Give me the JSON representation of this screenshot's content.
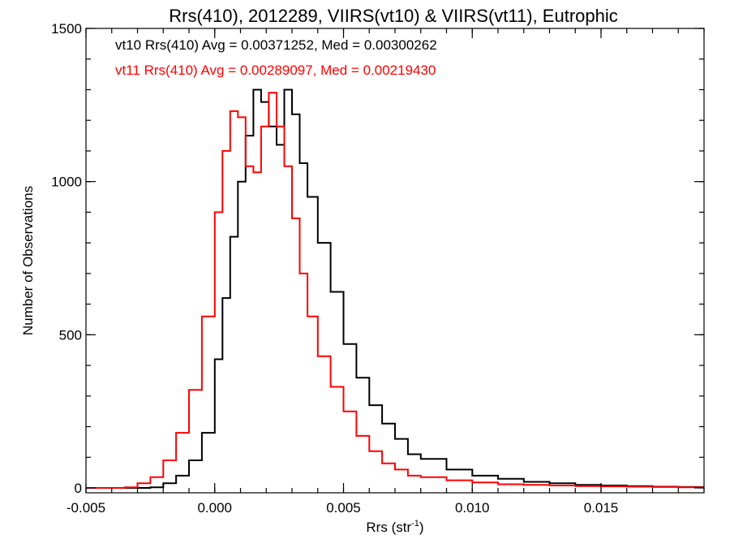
{
  "chart_data": {
    "type": "line",
    "title": "Rrs(410), 2012289, VIIRS(vt10) & VIIRS(vt11), Eutrophic",
    "xlabel": "Rrs (str",
    "xlabel_sup": "-1",
    "xlabel_end": ")",
    "ylabel": "Number of Observations",
    "xlim": [
      -0.005,
      0.019
    ],
    "ylim": [
      0,
      1500
    ],
    "x_ticks": [
      -0.005,
      0.0,
      0.005,
      0.01,
      0.015
    ],
    "x_tick_labels": [
      "-0.005",
      "0.000",
      "0.005",
      "0.010",
      "0.015"
    ],
    "y_ticks": [
      0,
      500,
      1000,
      1500
    ],
    "y_tick_labels": [
      "0",
      "500",
      "1000",
      "1500"
    ],
    "grid": false,
    "legend": [
      {
        "text": "vt10 Rrs(410) Avg = 0.00371252, Med = 0.00300262",
        "color": "#000000"
      },
      {
        "text": "vt11 Rrs(410) Avg = 0.00289097, Med = 0.00219430",
        "color": "#ff0000"
      }
    ],
    "series": [
      {
        "name": "vt10",
        "color": "#000000",
        "step": "post",
        "x": [
          -0.005,
          -0.004,
          -0.0035,
          -0.003,
          -0.0025,
          -0.002,
          -0.0015,
          -0.001,
          -0.0005,
          0.0,
          0.0003,
          0.0006,
          0.0009,
          0.0012,
          0.0015,
          0.0018,
          0.0021,
          0.0024,
          0.0027,
          0.003,
          0.0033,
          0.0036,
          0.004,
          0.0045,
          0.005,
          0.0055,
          0.006,
          0.0065,
          0.007,
          0.0075,
          0.008,
          0.009,
          0.01,
          0.011,
          0.012,
          0.013,
          0.014,
          0.015,
          0.016,
          0.017,
          0.018,
          0.019
        ],
        "y": [
          0,
          0,
          0,
          0,
          2,
          15,
          40,
          90,
          180,
          420,
          620,
          820,
          1000,
          1150,
          1300,
          1260,
          1180,
          1120,
          1300,
          1220,
          1060,
          950,
          800,
          640,
          470,
          360,
          270,
          210,
          160,
          110,
          95,
          60,
          40,
          30,
          20,
          15,
          10,
          8,
          6,
          4,
          3,
          3
        ]
      },
      {
        "name": "vt11",
        "color": "#ff0000",
        "step": "post",
        "x": [
          -0.005,
          -0.004,
          -0.0035,
          -0.003,
          -0.0025,
          -0.002,
          -0.0015,
          -0.001,
          -0.0005,
          0.0,
          0.0003,
          0.0006,
          0.0009,
          0.0012,
          0.0015,
          0.0018,
          0.0021,
          0.0024,
          0.0027,
          0.003,
          0.0033,
          0.0036,
          0.004,
          0.0045,
          0.005,
          0.0055,
          0.006,
          0.0065,
          0.007,
          0.0075,
          0.008,
          0.009,
          0.01,
          0.011,
          0.012,
          0.013,
          0.014,
          0.015,
          0.016,
          0.017,
          0.018,
          0.019
        ],
        "y": [
          0,
          0,
          2,
          15,
          35,
          90,
          180,
          320,
          560,
          900,
          1100,
          1230,
          1210,
          1050,
          1030,
          1180,
          1290,
          1180,
          1050,
          880,
          700,
          560,
          430,
          330,
          250,
          170,
          120,
          80,
          60,
          40,
          35,
          25,
          18,
          12,
          10,
          8,
          6,
          5,
          4,
          3,
          2,
          2
        ]
      }
    ]
  }
}
